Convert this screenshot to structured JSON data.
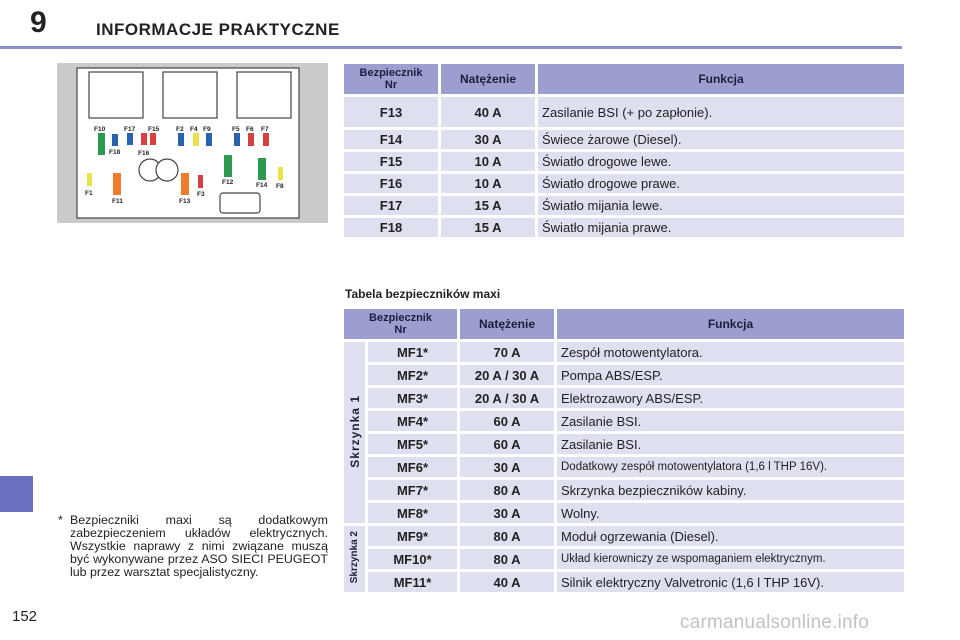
{
  "header": {
    "chapter_number": "9",
    "chapter_title": "INFORMACJE PRAKTYCZNE"
  },
  "page_number": "152",
  "accent_color": "#8d8fc7",
  "diagram": {
    "labels": [
      "F10",
      "F17",
      "F15",
      "F2",
      "F4",
      "F9",
      "F5",
      "F6",
      "F7",
      "F18",
      "F16",
      "F12",
      "F14",
      "F8",
      "F1",
      "F11",
      "F13",
      "F3"
    ]
  },
  "table1": {
    "headers": {
      "col1": "Bezpiecznik",
      "col1b": "Nr",
      "col2": "Natężenie",
      "col3": "Funkcja"
    },
    "rows": [
      {
        "nr": "F13",
        "amp": "40 A",
        "fn": "Zasilanie BSI (+ po zapłonie)."
      },
      {
        "nr": "F14",
        "amp": "30 A",
        "fn": "Świece żarowe (Diesel)."
      },
      {
        "nr": "F15",
        "amp": "10 A",
        "fn": "Światło drogowe lewe."
      },
      {
        "nr": "F16",
        "amp": "10 A",
        "fn": "Światło drogowe prawe."
      },
      {
        "nr": "F17",
        "amp": "15 A",
        "fn": "Światło mijania lewe."
      },
      {
        "nr": "F18",
        "amp": "15 A",
        "fn": "Światło mijania prawe."
      }
    ]
  },
  "table2": {
    "title": "Tabela bezpieczników maxi",
    "headers": {
      "col1": "Bezpiecznik",
      "col1b": "Nr",
      "col2": "Natężenie",
      "col3": "Funkcja"
    },
    "group1": "Skrzynka 1",
    "group2": "Skrzynka 2",
    "rows": [
      {
        "nr": "MF1*",
        "amp": "70 A",
        "fn": "Zespół motowentylatora."
      },
      {
        "nr": "MF2*",
        "amp": "20 A / 30 A",
        "fn": "Pompa ABS/ESP."
      },
      {
        "nr": "MF3*",
        "amp": "20 A / 30 A",
        "fn": "Elektrozawory ABS/ESP."
      },
      {
        "nr": "MF4*",
        "amp": "60 A",
        "fn": "Zasilanie BSI."
      },
      {
        "nr": "MF5*",
        "amp": "60 A",
        "fn": "Zasilanie BSI."
      },
      {
        "nr": "MF6*",
        "amp": "30 A",
        "fn": "Dodatkowy zespół motowentylatora (1,6 l THP 16V)."
      },
      {
        "nr": "MF7*",
        "amp": "80 A",
        "fn": "Skrzynka bezpieczników kabiny."
      },
      {
        "nr": "MF8*",
        "amp": "30 A",
        "fn": "Wolny."
      },
      {
        "nr": "MF9*",
        "amp": "80 A",
        "fn": "Moduł ogrzewania (Diesel)."
      },
      {
        "nr": "MF10*",
        "amp": "80 A",
        "fn": "Układ kierowniczy ze wspomaganiem elektrycznym."
      },
      {
        "nr": "MF11*",
        "amp": "40 A",
        "fn": "Silnik elektryczny Valvetronic (1,6 l THP 16V)."
      }
    ]
  },
  "footnote": {
    "star": "*",
    "text": "Bezpieczniki maxi są dodatkowym zabezpieczeniem układów elektrycznych. Wszystkie naprawy z nimi związane muszą być wykonywane przez ASO SIECI PEUGEOT lub przez warsztat specjalistyczny."
  },
  "watermark": "carmanualsonline.info"
}
